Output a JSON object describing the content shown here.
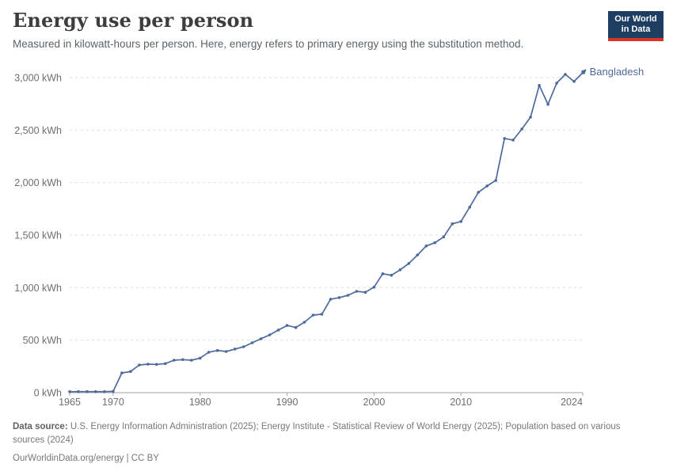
{
  "header": {
    "title": "Energy use per person",
    "subtitle": "Measured in kilowatt-hours per person. Here, energy refers to primary energy using the substitution method.",
    "logo": {
      "line1": "Our World",
      "line2": "in Data"
    }
  },
  "chart_data": {
    "type": "line",
    "title": "Energy use per person",
    "unit": "kWh",
    "xlabel": "",
    "ylabel": "",
    "xlim": [
      1965,
      2024
    ],
    "ylim": [
      0,
      3000
    ],
    "grid": "horizontal-dashed",
    "legend_position": "end-of-line-label",
    "xticks": [
      1965,
      1970,
      1980,
      1990,
      2000,
      2010,
      2024
    ],
    "yticks": [
      0,
      500,
      1000,
      1500,
      2000,
      2500,
      3000
    ],
    "ytick_suffix": " kWh",
    "x": [
      1965,
      1966,
      1967,
      1968,
      1969,
      1970,
      1971,
      1972,
      1973,
      1974,
      1975,
      1976,
      1977,
      1978,
      1979,
      1980,
      1981,
      1982,
      1983,
      1984,
      1985,
      1986,
      1987,
      1988,
      1989,
      1990,
      1991,
      1992,
      1993,
      1994,
      1995,
      1996,
      1997,
      1998,
      1999,
      2000,
      2001,
      2002,
      2003,
      2004,
      2005,
      2006,
      2007,
      2008,
      2009,
      2010,
      2011,
      2012,
      2013,
      2014,
      2015,
      2016,
      2017,
      2018,
      2019,
      2020,
      2021,
      2022,
      2023,
      2024
    ],
    "series": [
      {
        "name": "Bangladesh",
        "color": "#4c6a9c",
        "values": [
          10,
          10,
          10,
          10,
          10,
          12,
          188,
          201,
          264,
          271,
          269,
          277,
          309,
          314,
          309,
          329,
          385,
          402,
          392,
          415,
          437,
          475,
          513,
          550,
          596,
          640,
          620,
          671,
          739,
          747,
          890,
          905,
          927,
          965,
          956,
          1005,
          1132,
          1118,
          1170,
          1230,
          1311,
          1397,
          1428,
          1483,
          1608,
          1630,
          1766,
          1908,
          1968,
          2021,
          2420,
          2405,
          2510,
          2624,
          2926,
          2745,
          2948,
          3031,
          2963,
          3046
        ]
      }
    ]
  },
  "footer": {
    "source_label": "Data source:",
    "source_text": "U.S. Energy Information Administration (2025); Energy Institute - Statistical Review of World Energy (2025); Population based on various sources (2024)",
    "permalink": "OurWorldinData.org/energy | CC BY"
  },
  "colors": {
    "accent_line": "#4c6a9c",
    "logo_bg": "#1d3d63",
    "logo_bar": "#d8352a",
    "grid": "#dedede",
    "axis": "#a3a3a3",
    "tick_text": "#6e6e6e"
  }
}
